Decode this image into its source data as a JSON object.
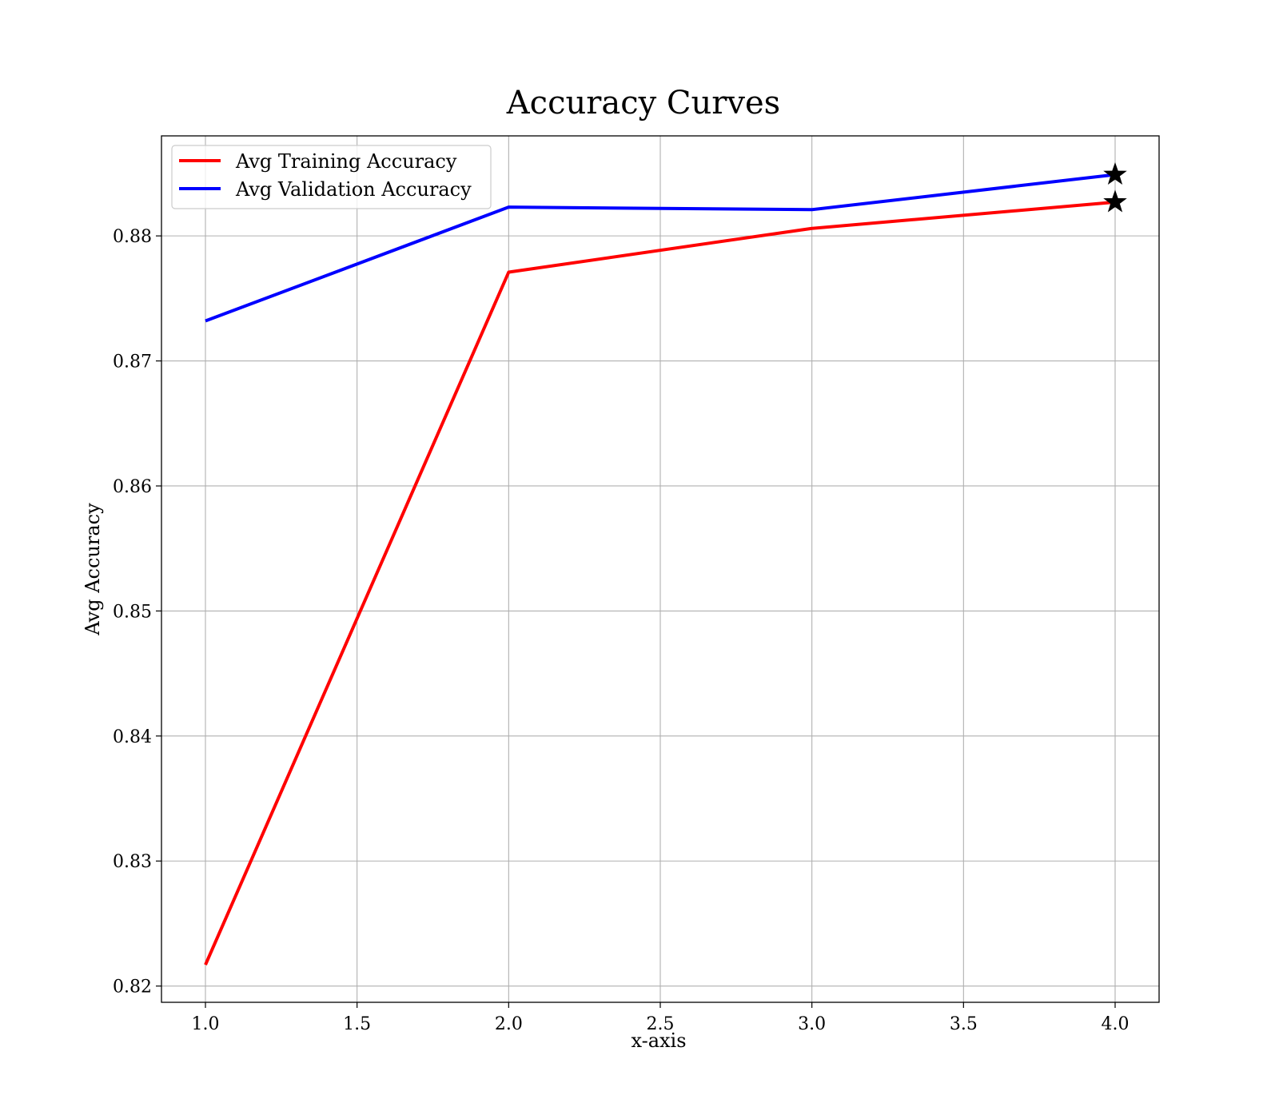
{
  "chart_data": {
    "type": "line",
    "title": "Accuracy Curves",
    "xlabel": "x-axis",
    "ylabel": "Avg Accuracy",
    "xlim": [
      0.855,
      4.145
    ],
    "ylim": [
      0.8187,
      0.888
    ],
    "x_ticks": [
      1.0,
      1.5,
      2.0,
      2.5,
      3.0,
      3.5,
      4.0
    ],
    "x_tick_labels": [
      "1.0",
      "1.5",
      "2.0",
      "2.5",
      "3.0",
      "3.5",
      "4.0"
    ],
    "y_ticks": [
      0.82,
      0.83,
      0.84,
      0.85,
      0.86,
      0.87,
      0.88
    ],
    "y_tick_labels": [
      "0.82",
      "0.83",
      "0.84",
      "0.85",
      "0.86",
      "0.87",
      "0.88"
    ],
    "grid": true,
    "legend_position": "top-left",
    "series": [
      {
        "name": "Avg Training Accuracy",
        "color": "#ff0000",
        "x": [
          1,
          2,
          3,
          4
        ],
        "values": [
          0.8217,
          0.8771,
          0.8806,
          0.8827
        ],
        "marker_last": "star"
      },
      {
        "name": "Avg Validation Accuracy",
        "color": "#0000ff",
        "x": [
          1,
          2,
          3,
          4
        ],
        "values": [
          0.8732,
          0.8823,
          0.8821,
          0.8849
        ],
        "marker_last": "star"
      }
    ]
  }
}
